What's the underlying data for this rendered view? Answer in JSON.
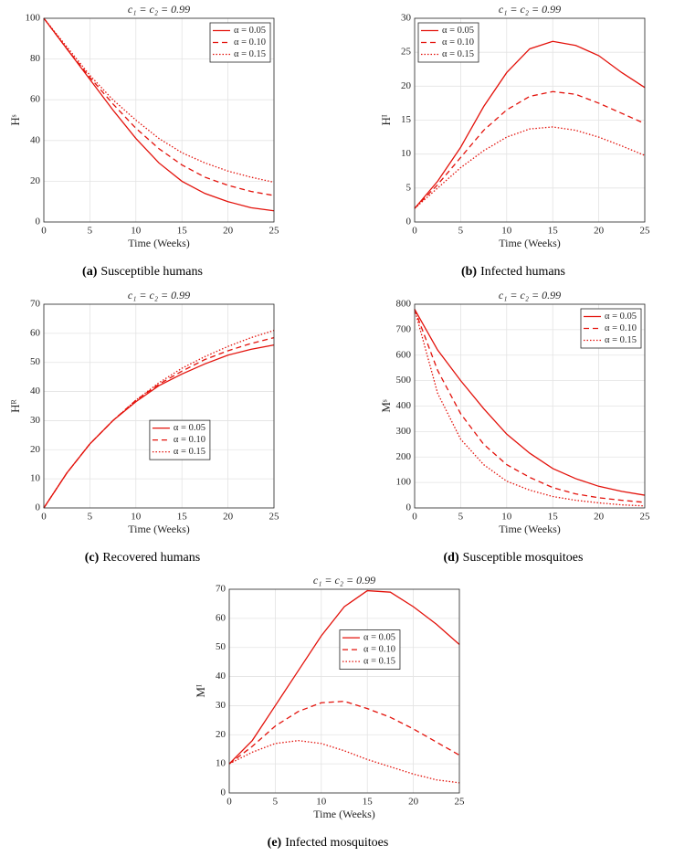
{
  "chart_data": [
    {
      "type": "line",
      "title": "c₁ = c₂ = 0.99",
      "xlabel": "Time (Weeks)",
      "ylabel": "Hˢ",
      "caption_label": "(a)",
      "caption": "Susceptible humans",
      "x": [
        0,
        2.5,
        5,
        7.5,
        10,
        12.5,
        15,
        17.5,
        20,
        22.5,
        25
      ],
      "xlim": [
        0,
        25
      ],
      "xticks": [
        0,
        5,
        10,
        15,
        20,
        25
      ],
      "ylim": [
        0,
        100
      ],
      "yticks": [
        0,
        20,
        40,
        60,
        80,
        100
      ],
      "grid": true,
      "legend": "upper right",
      "series": [
        {
          "name": "α = 0.05",
          "color": "#e3120b",
          "linestyle": "solid",
          "values": [
            100,
            85,
            70,
            55,
            41,
            29,
            20,
            14,
            10,
            7,
            5.5
          ]
        },
        {
          "name": "α = 0.10",
          "color": "#e3120b",
          "linestyle": "dashed",
          "values": [
            100,
            85,
            71,
            58,
            46,
            36,
            28,
            22,
            18,
            15,
            13
          ]
        },
        {
          "name": "α = 0.15",
          "color": "#e3120b",
          "linestyle": "dotted",
          "values": [
            100,
            86,
            72,
            60,
            50,
            41,
            34,
            29,
            25,
            22,
            19.5
          ]
        }
      ]
    },
    {
      "type": "line",
      "title": "c₁ = c₂ = 0.99",
      "xlabel": "Time (Weeks)",
      "ylabel": "Hᴵ",
      "caption_label": "(b)",
      "caption": "Infected humans",
      "x": [
        0,
        2.5,
        5,
        7.5,
        10,
        12.5,
        15,
        17.5,
        20,
        22.5,
        25
      ],
      "xlim": [
        0,
        25
      ],
      "xticks": [
        0,
        5,
        10,
        15,
        20,
        25
      ],
      "ylim": [
        0,
        30
      ],
      "yticks": [
        0,
        5,
        10,
        15,
        20,
        25,
        30
      ],
      "grid": true,
      "legend": "upper left",
      "series": [
        {
          "name": "α = 0.05",
          "color": "#e3120b",
          "linestyle": "solid",
          "values": [
            2,
            6,
            11,
            17,
            22,
            25.5,
            26.6,
            26,
            24.5,
            22,
            19.8
          ]
        },
        {
          "name": "α = 0.10",
          "color": "#e3120b",
          "linestyle": "dashed",
          "values": [
            2,
            5.5,
            9.5,
            13.5,
            16.5,
            18.5,
            19.2,
            18.8,
            17.5,
            16,
            14.5
          ]
        },
        {
          "name": "α = 0.15",
          "color": "#e3120b",
          "linestyle": "dotted",
          "values": [
            2,
            5,
            8,
            10.5,
            12.5,
            13.7,
            14,
            13.5,
            12.5,
            11.2,
            9.8
          ]
        }
      ]
    },
    {
      "type": "line",
      "title": "c₁ = c₂ = 0.99",
      "xlabel": "Time (Weeks)",
      "ylabel": "Hᴿ",
      "caption_label": "(c)",
      "caption": "Recovered humans",
      "x": [
        0,
        2.5,
        5,
        7.5,
        10,
        12.5,
        15,
        17.5,
        20,
        22.5,
        25
      ],
      "xlim": [
        0,
        25
      ],
      "xticks": [
        0,
        5,
        10,
        15,
        20,
        25
      ],
      "ylim": [
        0,
        70
      ],
      "yticks": [
        0,
        10,
        20,
        30,
        40,
        50,
        60,
        70
      ],
      "grid": true,
      "legend": "center",
      "series": [
        {
          "name": "α = 0.05",
          "color": "#e3120b",
          "linestyle": "solid",
          "values": [
            0,
            12,
            22,
            30,
            36.5,
            42,
            46,
            49.5,
            52.5,
            54.5,
            56
          ]
        },
        {
          "name": "α = 0.10",
          "color": "#e3120b",
          "linestyle": "dashed",
          "values": [
            0,
            12,
            22,
            30,
            37,
            42.5,
            47,
            51,
            54,
            56.5,
            58.5
          ]
        },
        {
          "name": "α = 0.15",
          "color": "#e3120b",
          "linestyle": "dotted",
          "values": [
            0,
            12,
            22,
            30,
            37,
            43,
            48,
            52,
            55.5,
            58.5,
            61
          ]
        }
      ]
    },
    {
      "type": "line",
      "title": "c₁ = c₂ = 0.99",
      "xlabel": "Time (Weeks)",
      "ylabel": "Mˢ",
      "caption_label": "(d)",
      "caption": "Susceptible mosquitoes",
      "x": [
        0,
        2.5,
        5,
        7.5,
        10,
        12.5,
        15,
        17.5,
        20,
        22.5,
        25
      ],
      "xlim": [
        0,
        25
      ],
      "xticks": [
        0,
        5,
        10,
        15,
        20,
        25
      ],
      "ylim": [
        0,
        800
      ],
      "yticks": [
        0,
        100,
        200,
        300,
        400,
        500,
        600,
        700,
        800
      ],
      "grid": true,
      "legend": "upper right",
      "series": [
        {
          "name": "α = 0.05",
          "color": "#e3120b",
          "linestyle": "solid",
          "values": [
            780,
            620,
            500,
            390,
            290,
            215,
            155,
            115,
            85,
            65,
            50
          ]
        },
        {
          "name": "α = 0.10",
          "color": "#e3120b",
          "linestyle": "dashed",
          "values": [
            780,
            540,
            370,
            250,
            170,
            120,
            80,
            55,
            40,
            30,
            22
          ]
        },
        {
          "name": "α = 0.15",
          "color": "#e3120b",
          "linestyle": "dotted",
          "values": [
            780,
            450,
            270,
            170,
            105,
            70,
            45,
            30,
            20,
            12,
            8
          ]
        }
      ]
    },
    {
      "type": "line",
      "title": "c₁ = c₂ = 0.99",
      "xlabel": "Time (Weeks)",
      "ylabel": "Mᴵ",
      "caption_label": "(e)",
      "caption": "Infected mosquitoes",
      "x": [
        0,
        2.5,
        5,
        7.5,
        10,
        12.5,
        15,
        17.5,
        20,
        22.5,
        25
      ],
      "xlim": [
        0,
        25
      ],
      "xticks": [
        0,
        5,
        10,
        15,
        20,
        25
      ],
      "ylim": [
        0,
        70
      ],
      "yticks": [
        0,
        10,
        20,
        30,
        40,
        50,
        60,
        70
      ],
      "grid": true,
      "legend": "upper center",
      "series": [
        {
          "name": "α = 0.05",
          "color": "#e3120b",
          "linestyle": "solid",
          "values": [
            10,
            18,
            30,
            42,
            54,
            64,
            69.5,
            69,
            64,
            58,
            51
          ]
        },
        {
          "name": "α = 0.10",
          "color": "#e3120b",
          "linestyle": "dashed",
          "values": [
            10,
            16,
            23,
            28,
            31,
            31.5,
            29,
            26,
            22,
            17.5,
            13
          ]
        },
        {
          "name": "α = 0.15",
          "color": "#e3120b",
          "linestyle": "dotted",
          "values": [
            10,
            14,
            17,
            18,
            17,
            14.5,
            11.5,
            9,
            6.5,
            4.5,
            3.5
          ]
        }
      ]
    }
  ]
}
